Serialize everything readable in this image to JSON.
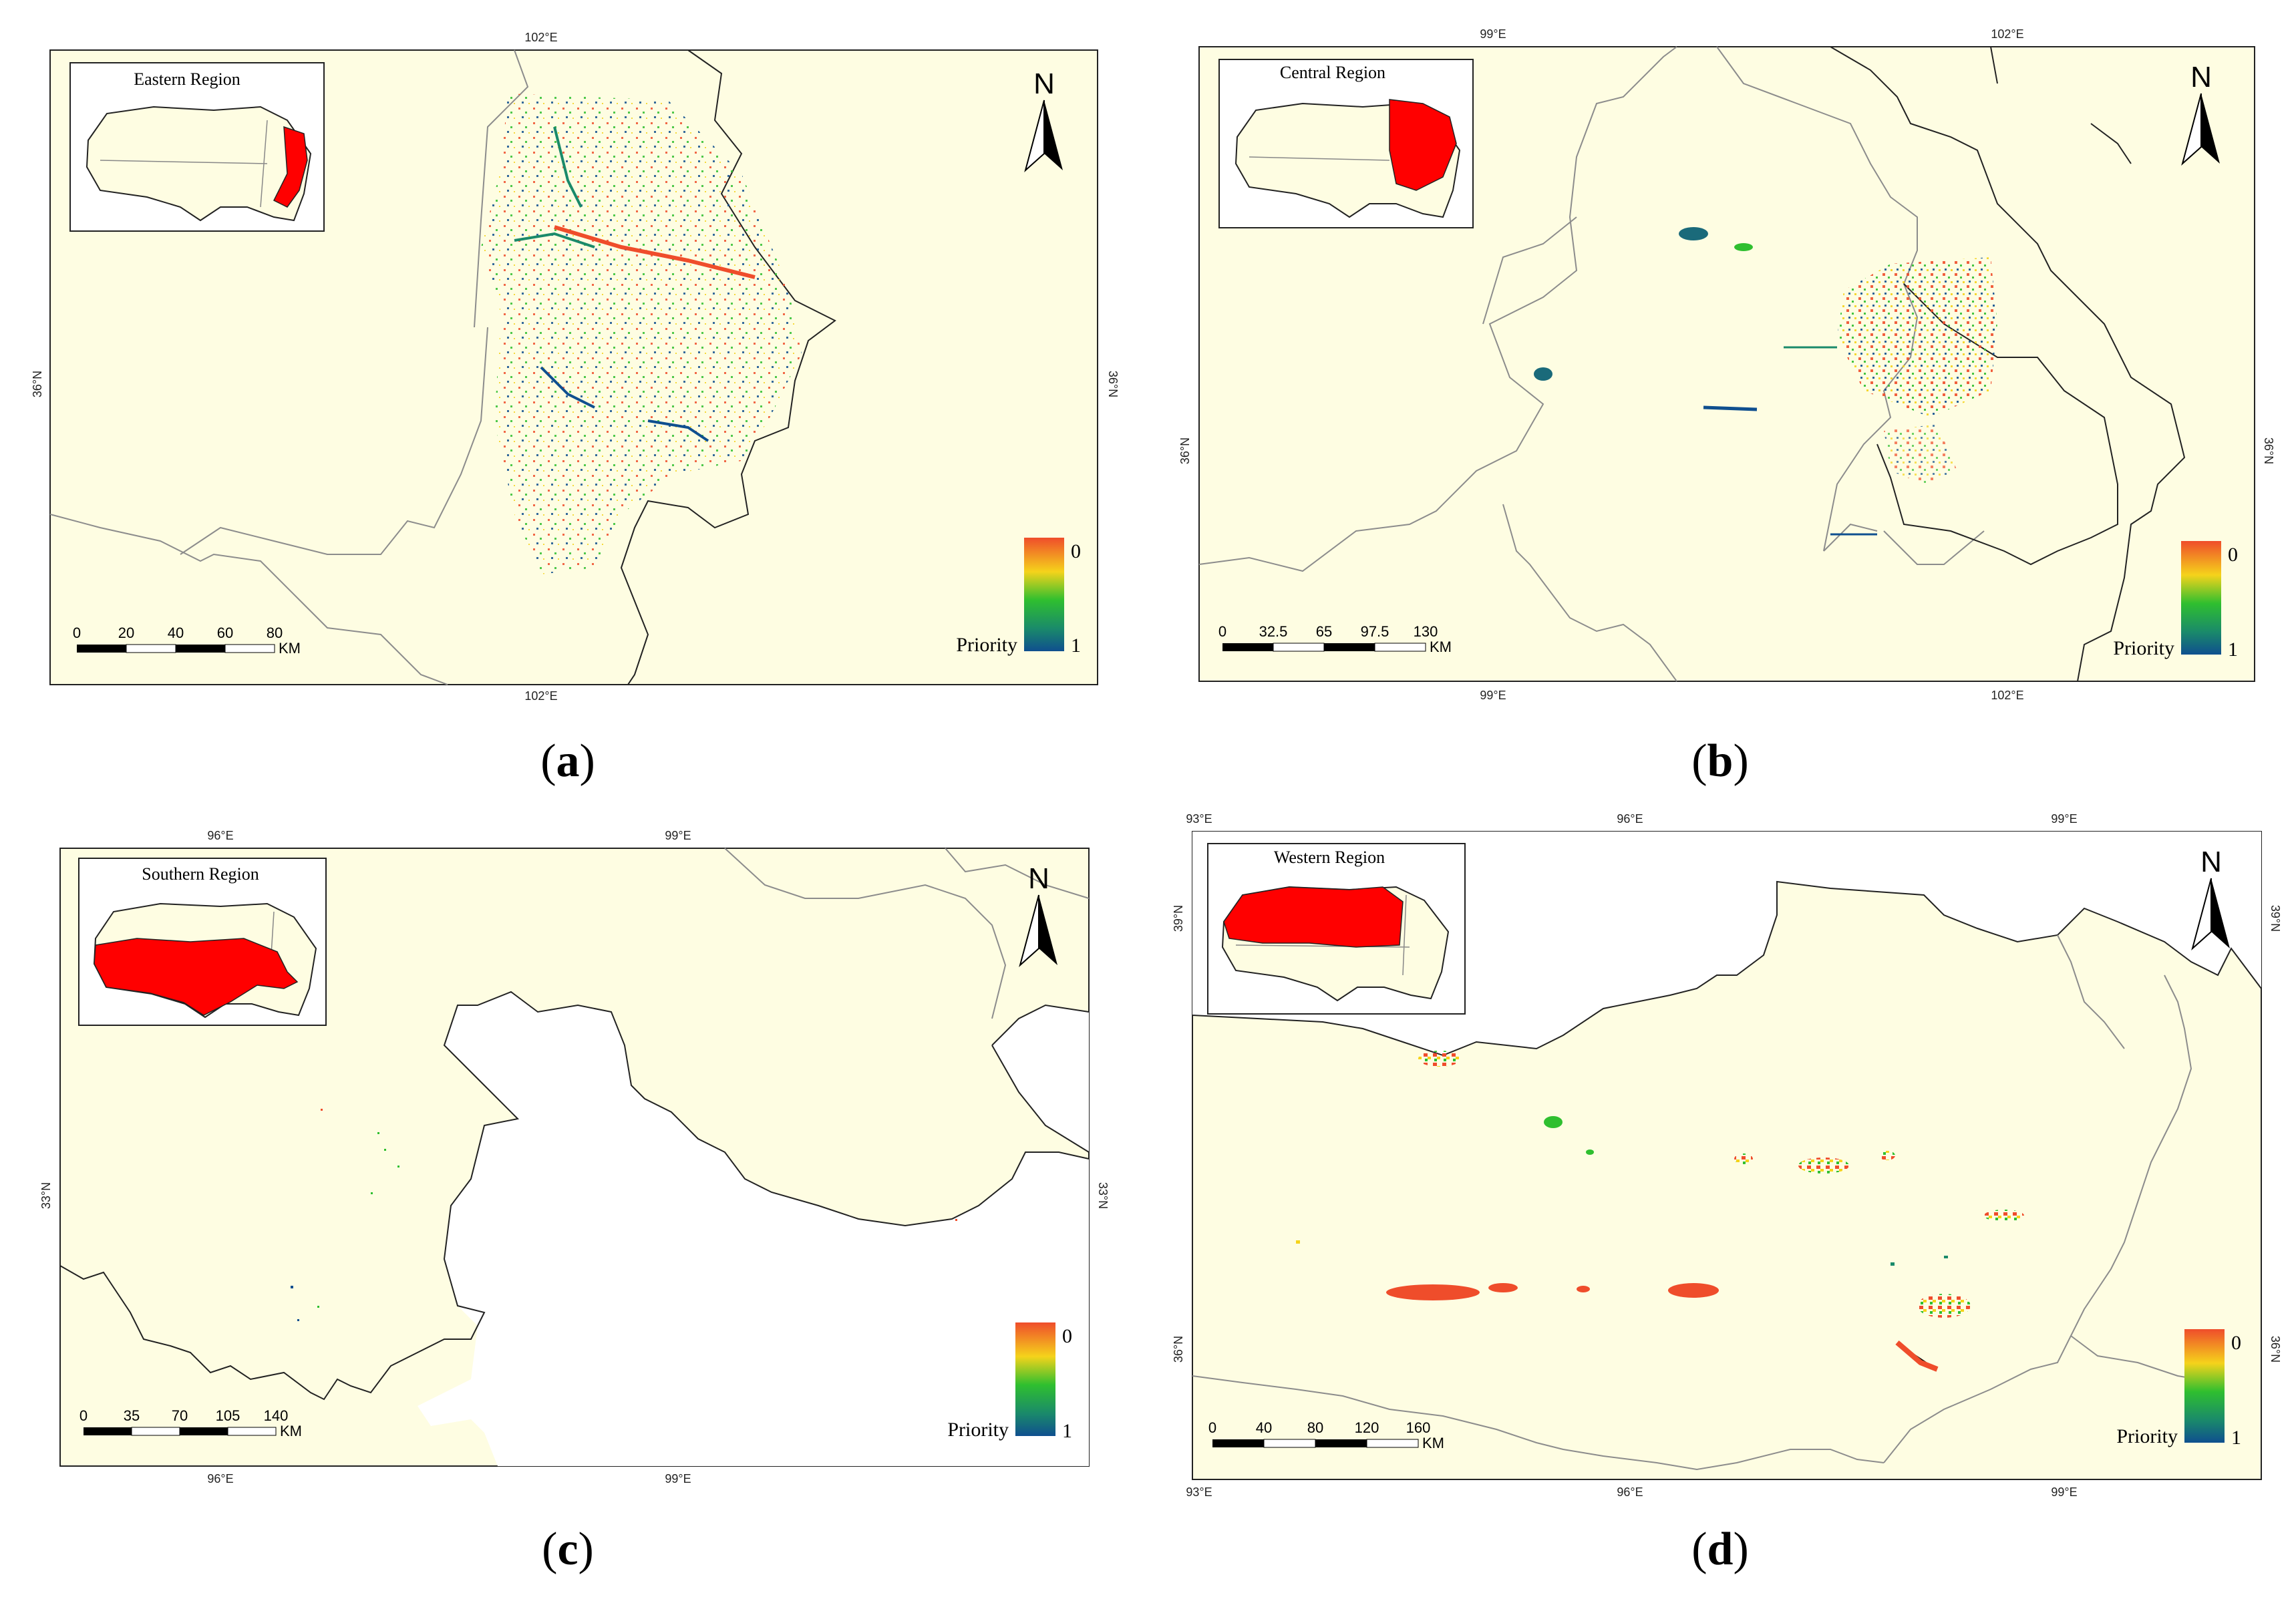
{
  "panels": [
    {
      "id": "a",
      "caption": "a",
      "inset_title": "Eastern Region",
      "lon_label": "102°E",
      "lat_label": "36°N",
      "scale_ticks": [
        "0",
        "20",
        "40",
        "60",
        "80"
      ],
      "scale_unit": "KM",
      "legend_top": "0",
      "legend_bottom": "1",
      "legend_title": "Priority",
      "north": "N"
    },
    {
      "id": "b",
      "caption": "b",
      "inset_title": "Central Region",
      "lon_label_1": "99°E",
      "lon_label_2": "102°E",
      "lat_label": "36°N",
      "scale_ticks": [
        "0",
        "32.5",
        "65",
        "97.5",
        "130"
      ],
      "scale_unit": "KM",
      "legend_top": "0",
      "legend_bottom": "1",
      "legend_title": "Priority",
      "north": "N"
    },
    {
      "id": "c",
      "caption": "c",
      "inset_title": "Southern Region",
      "lon_label_1": "96°E",
      "lon_label_2": "99°E",
      "lat_label": "33°N",
      "scale_ticks": [
        "0",
        "35",
        "70",
        "105",
        "140"
      ],
      "scale_unit": "KM",
      "legend_top": "0",
      "legend_bottom": "1",
      "legend_title": "Priority",
      "north": "N"
    },
    {
      "id": "d",
      "caption": "d",
      "inset_title": "Western Region",
      "lon_label_1": "93°E",
      "lon_label_2": "96°E",
      "lon_label_3": "99°E",
      "lat_label_1": "39°N",
      "lat_label_2": "36°N",
      "scale_ticks": [
        "0",
        "40",
        "80",
        "120",
        "160"
      ],
      "scale_unit": "KM",
      "legend_top": "0",
      "legend_bottom": "1",
      "legend_title": "Priority",
      "north": "N"
    }
  ],
  "colors": {
    "land": "#fefde2",
    "border_dark": "#222222",
    "border_gray": "#8c8c8c",
    "highlight": "#ff0000",
    "priority_high": "#ef4d2b",
    "priority_mid": "#f5d31b",
    "priority_low_mid": "#2fbf2f",
    "priority_low": "#0f4f8f"
  }
}
